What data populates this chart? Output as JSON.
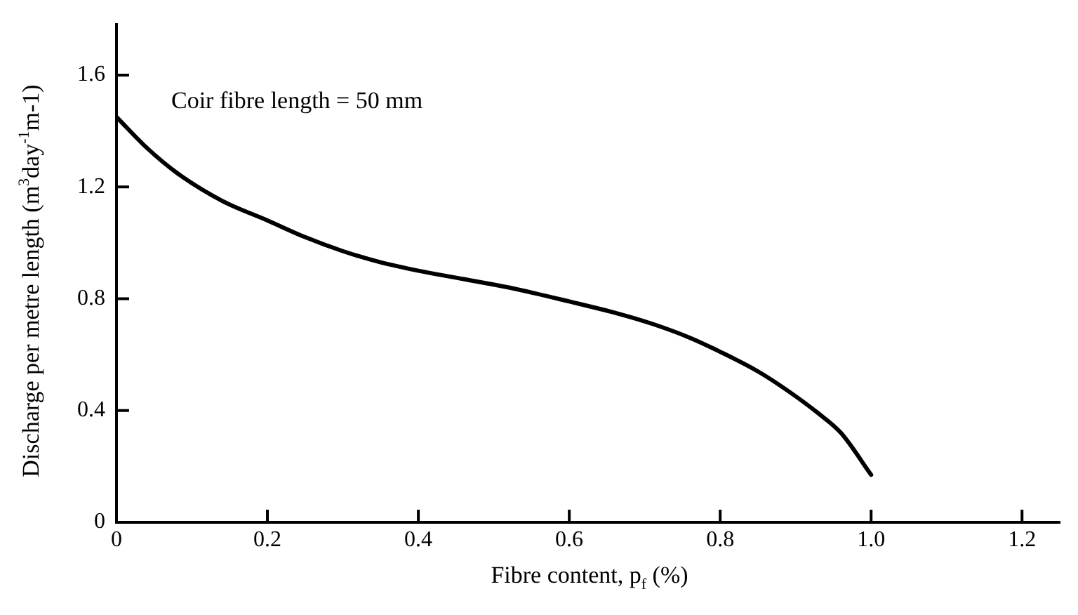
{
  "chart_data": {
    "type": "line",
    "xlabel": "Fibre content, p$_{f}$ (%)",
    "ylabel": "Discharge per metre length (m$^{3}$day$^{-1}$m-1)",
    "annotations": [
      "Coir fibre length = 50 mm"
    ],
    "x": [
      0,
      0.04,
      0.08,
      0.14,
      0.2,
      0.25,
      0.3,
      0.35,
      0.4,
      0.46,
      0.52,
      0.6,
      0.66,
      0.71,
      0.76,
      0.8,
      0.85,
      0.89,
      0.93,
      0.96,
      1.0
    ],
    "series": [
      {
        "color": "#000000",
        "values": [
          1.45,
          1.34,
          1.25,
          1.15,
          1.08,
          1.02,
          0.97,
          0.93,
          0.9,
          0.87,
          0.84,
          0.79,
          0.75,
          0.71,
          0.66,
          0.61,
          0.54,
          0.47,
          0.39,
          0.32,
          0.17
        ]
      }
    ],
    "xlim": [
      0,
      1.25
    ],
    "ylim": [
      0,
      1.78
    ],
    "xticks": [
      0,
      0.2,
      0.4,
      0.6,
      0.8,
      {
        "value": 1.0,
        "label": "1.0"
      },
      1.2
    ],
    "yticks": [
      0,
      0.4,
      0.8,
      1.2,
      1.6
    ],
    "grid": false,
    "legend": false,
    "marker": "none",
    "line_style": "solid"
  }
}
